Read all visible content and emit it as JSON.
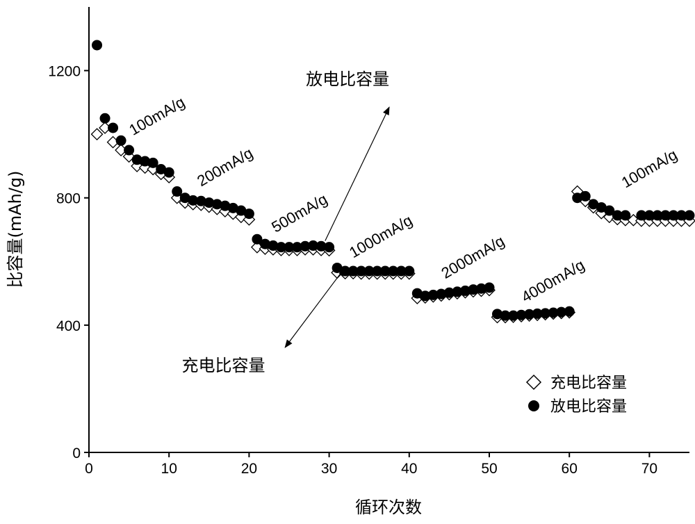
{
  "chart_data": {
    "type": "scatter",
    "title": "",
    "xlabel": "循环次数",
    "ylabel": "比容量(mAh/g)",
    "xlim": [
      0,
      75
    ],
    "ylim": [
      0,
      1400
    ],
    "x_ticks": [
      "0",
      "10",
      "20",
      "30",
      "40",
      "50",
      "60",
      "70"
    ],
    "y_ticks": [
      "0",
      "400",
      "800",
      "1200"
    ],
    "x_tick_values": [
      0,
      10,
      20,
      30,
      40,
      50,
      60,
      70
    ],
    "y_tick_values": [
      0,
      400,
      800,
      1200
    ],
    "grid": false,
    "legend_position": "bottom-right",
    "series": [
      {
        "name": "充电比容量",
        "marker": "open-diamond",
        "color": "#000000",
        "x": [
          1,
          2,
          3,
          4,
          5,
          6,
          7,
          8,
          9,
          10,
          11,
          12,
          13,
          14,
          15,
          16,
          17,
          18,
          19,
          20,
          21,
          22,
          23,
          24,
          25,
          26,
          27,
          28,
          29,
          30,
          31,
          32,
          33,
          34,
          35,
          36,
          37,
          38,
          39,
          40,
          41,
          42,
          43,
          44,
          45,
          46,
          47,
          48,
          49,
          50,
          51,
          52,
          53,
          54,
          55,
          56,
          57,
          58,
          59,
          60,
          61,
          62,
          63,
          64,
          65,
          66,
          67,
          68,
          69,
          70,
          71,
          72,
          73,
          74,
          75
        ],
        "y": [
          1000,
          1020,
          975,
          950,
          930,
          900,
          895,
          890,
          875,
          865,
          800,
          785,
          780,
          778,
          772,
          765,
          758,
          750,
          740,
          732,
          645,
          640,
          638,
          636,
          636,
          636,
          638,
          638,
          636,
          635,
          565,
          563,
          563,
          562,
          562,
          562,
          562,
          562,
          562,
          562,
          485,
          487,
          490,
          493,
          497,
          500,
          503,
          506,
          508,
          510,
          425,
          425,
          426,
          428,
          430,
          432,
          434,
          436,
          438,
          440,
          820,
          790,
          770,
          752,
          740,
          733,
          730,
          730,
          728,
          728,
          728,
          728,
          728,
          728,
          728
        ]
      },
      {
        "name": "放电比容量",
        "marker": "filled-circle",
        "color": "#000000",
        "x": [
          1,
          2,
          3,
          4,
          5,
          6,
          7,
          8,
          9,
          10,
          11,
          12,
          13,
          14,
          15,
          16,
          17,
          18,
          19,
          20,
          21,
          22,
          23,
          24,
          25,
          26,
          27,
          28,
          29,
          30,
          31,
          32,
          33,
          34,
          35,
          36,
          37,
          38,
          39,
          40,
          41,
          42,
          43,
          44,
          45,
          46,
          47,
          48,
          49,
          50,
          51,
          52,
          53,
          54,
          55,
          56,
          57,
          58,
          59,
          60,
          61,
          62,
          63,
          64,
          65,
          66,
          67,
          69,
          70,
          71,
          72,
          73,
          74,
          75
        ],
        "y": [
          1280,
          1050,
          1020,
          980,
          950,
          920,
          915,
          910,
          890,
          880,
          820,
          800,
          792,
          790,
          785,
          780,
          775,
          768,
          760,
          750,
          670,
          655,
          650,
          645,
          645,
          645,
          648,
          650,
          648,
          645,
          580,
          570,
          570,
          570,
          570,
          570,
          570,
          570,
          570,
          570,
          500,
          492,
          495,
          498,
          502,
          505,
          508,
          512,
          515,
          518,
          435,
          430,
          430,
          432,
          434,
          436,
          437,
          439,
          441,
          443,
          800,
          805,
          780,
          770,
          760,
          745,
          745,
          745,
          745,
          745,
          745,
          745,
          745,
          745
        ]
      }
    ],
    "annotations": [
      {
        "text": "100mA/g",
        "x": 5.5,
        "y": 995,
        "angle": -30
      },
      {
        "text": "200mA/g",
        "x": 14,
        "y": 835,
        "angle": -30
      },
      {
        "text": "500mA/g",
        "x": 23.3,
        "y": 690,
        "angle": -30
      },
      {
        "text": "1000mA/g",
        "x": 33,
        "y": 610,
        "angle": -30
      },
      {
        "text": "2000mA/g",
        "x": 44.5,
        "y": 545,
        "angle": -30
      },
      {
        "text": "4000mA/g",
        "x": 54.5,
        "y": 470,
        "angle": -30
      },
      {
        "text": "100mA/g",
        "x": 67,
        "y": 830,
        "angle": -30
      }
    ],
    "arrow_labels": [
      {
        "text": "放电比容量",
        "x": 32.3,
        "y": 1155,
        "arrow_from": [
          29.5,
          665
        ],
        "arrow_to": [
          37.5,
          1085
        ]
      },
      {
        "text": "充电比容量",
        "x": 16.8,
        "y": 255,
        "arrow_from": [
          31.5,
          565
        ],
        "arrow_to": [
          24.5,
          330
        ]
      }
    ]
  }
}
